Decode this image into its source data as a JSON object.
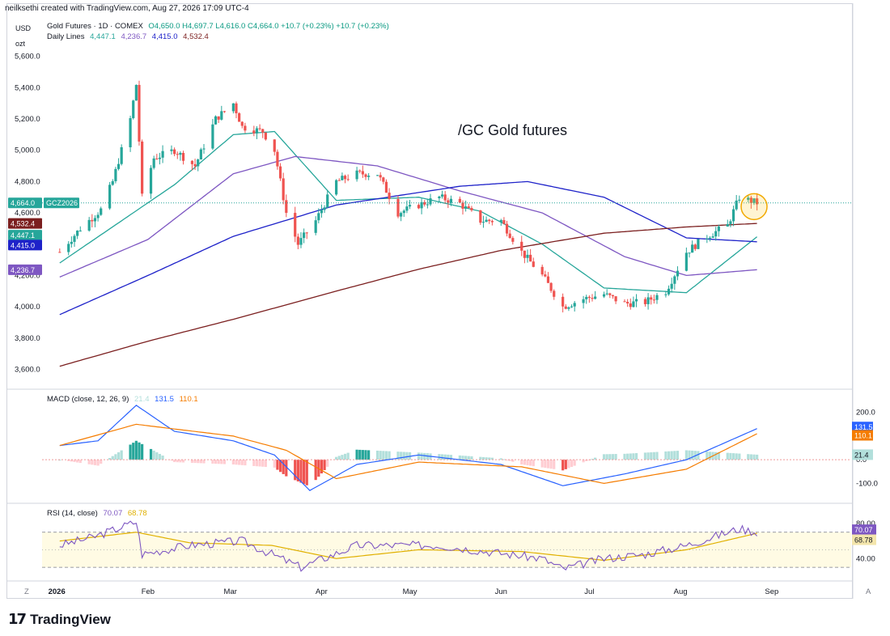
{
  "header": {
    "created": "neilksethi created with TradingView.com, Aug 27, 2026 17:09 UTC-4"
  },
  "units": {
    "currency": "USD",
    "unit": "ozt"
  },
  "legend": {
    "instrument": "Gold Futures · 1D · COMEX",
    "ohlc": "O4,650.0  H4,697.7  L4,616.0  C4,664.0  +10.7 (+0.23%)  +10.7 (+0.23%)",
    "daily_lines_label": "Daily Lines",
    "daily_lines_values": [
      {
        "v": "4,447.1",
        "color": "#26a69a"
      },
      {
        "v": "4,236.7",
        "color": "#7e57c2"
      },
      {
        "v": "4,415.0",
        "color": "#1e22c9"
      },
      {
        "v": "4,532.4",
        "color": "#7b1f1f"
      }
    ],
    "macd_label": "MACD (close, 12, 26, 9)",
    "macd_values": [
      {
        "v": "21.4",
        "color": "#b2dfdb"
      },
      {
        "v": "131.5",
        "color": "#2962ff"
      },
      {
        "v": "110.1",
        "color": "#f57c00"
      }
    ],
    "rsi_label": "RSI (14, close)",
    "rsi_values": [
      {
        "v": "70.07",
        "color": "#7e57c2"
      },
      {
        "v": "68.78",
        "color": "#e0b000"
      }
    ]
  },
  "annotation": "/GC Gold futures",
  "price_badges": [
    {
      "text": "4,664.0",
      "bg": "#26a69a",
      "value": 4664.0
    },
    {
      "text": "GCZ2026",
      "bg": "#26a69a",
      "value": 4664.0
    },
    {
      "text": "4,532.4",
      "bg": "#7b1f1f",
      "value": 4532.4
    },
    {
      "text": "4,447.1",
      "bg": "#26a69a",
      "value": 4447.1
    },
    {
      "text": "4,415.0",
      "bg": "#1e22c9",
      "value": 4415.0
    },
    {
      "text": "4,236.7",
      "bg": "#7e57c2",
      "value": 4236.7
    }
  ],
  "macd_badges": [
    {
      "text": "131.5",
      "bg": "#2962ff",
      "value": 131.5
    },
    {
      "text": "110.1",
      "bg": "#f57c00",
      "value": 110.1
    },
    {
      "text": "21.4",
      "bg": "#b2dfdb",
      "value": 21.4,
      "fg": "#131722"
    }
  ],
  "rsi_badges": [
    {
      "text": "70.07",
      "bg": "#7e57c2",
      "value": 70.07
    },
    {
      "text": "68.78",
      "bg": "#f3e5ab",
      "value": 68.78,
      "fg": "#131722"
    }
  ],
  "footer": {
    "brand": "TradingView",
    "z_label": "Z",
    "a_label": "A"
  },
  "colors": {
    "up": "#26a69a",
    "down": "#ef5350",
    "ma20": "#26a69a",
    "ma50": "#7e57c2",
    "ma100": "#1e22c9",
    "ma200": "#7b1f1f"
  },
  "chart_data": [
    {
      "type": "candlestick",
      "title": "Gold Futures · 1D · COMEX",
      "x_tick_labels": [
        "2026",
        "Feb",
        "Mar",
        "Apr",
        "May",
        "Jun",
        "Jul",
        "Aug",
        "Sep"
      ],
      "y_tick_labels": [
        "3,600.0",
        "3,800.0",
        "4,000.0",
        "4,200.0",
        "4,400.0",
        "4,600.0",
        "4,800.0",
        "5,000.0",
        "5,200.0",
        "5,400.0",
        "5,600.0"
      ],
      "ylim": [
        3530,
        5650
      ],
      "keypoints_close": [
        [
          "2026-01-02",
          4350
        ],
        [
          "2026-01-09",
          4500
        ],
        [
          "2026-01-16",
          4620
        ],
        [
          "2026-01-20",
          4800
        ],
        [
          "2026-01-26",
          5200
        ],
        [
          "2026-01-28",
          5420
        ],
        [
          "2026-01-30",
          4700
        ],
        [
          "2026-02-03",
          4950
        ],
        [
          "2026-02-10",
          5000
        ],
        [
          "2026-02-17",
          4900
        ],
        [
          "2026-02-24",
          5200
        ],
        [
          "2026-03-02",
          5300
        ],
        [
          "2026-03-05",
          5150
        ],
        [
          "2026-03-12",
          5120
        ],
        [
          "2026-03-16",
          5000
        ],
        [
          "2026-03-20",
          4600
        ],
        [
          "2026-03-24",
          4400
        ],
        [
          "2026-03-30",
          4550
        ],
        [
          "2026-04-06",
          4800
        ],
        [
          "2026-04-13",
          4850
        ],
        [
          "2026-04-20",
          4850
        ],
        [
          "2026-04-27",
          4600
        ],
        [
          "2026-05-04",
          4650
        ],
        [
          "2026-05-11",
          4700
        ],
        [
          "2026-05-18",
          4660
        ],
        [
          "2026-05-25",
          4550
        ],
        [
          "2026-06-01",
          4550
        ],
        [
          "2026-06-08",
          4350
        ],
        [
          "2026-06-15",
          4200
        ],
        [
          "2026-06-22",
          4000
        ],
        [
          "2026-06-29",
          4050
        ],
        [
          "2026-07-06",
          4080
        ],
        [
          "2026-07-13",
          4020
        ],
        [
          "2026-07-20",
          4030
        ],
        [
          "2026-07-27",
          4100
        ],
        [
          "2026-08-03",
          4350
        ],
        [
          "2026-08-10",
          4450
        ],
        [
          "2026-08-17",
          4520
        ],
        [
          "2026-08-21",
          4700
        ],
        [
          "2026-08-27",
          4664
        ]
      ],
      "moving_averages": {
        "ma20": [
          [
            "2026-01-02",
            4280
          ],
          [
            "2026-02-10",
            4780
          ],
          [
            "2026-03-02",
            5100
          ],
          [
            "2026-03-16",
            5120
          ],
          [
            "2026-04-06",
            4680
          ],
          [
            "2026-05-04",
            4700
          ],
          [
            "2026-05-25",
            4610
          ],
          [
            "2026-06-15",
            4400
          ],
          [
            "2026-07-06",
            4120
          ],
          [
            "2026-08-03",
            4090
          ],
          [
            "2026-08-27",
            4447.1
          ]
        ],
        "ma50": [
          [
            "2026-01-02",
            4190
          ],
          [
            "2026-02-01",
            4430
          ],
          [
            "2026-03-02",
            4850
          ],
          [
            "2026-03-23",
            4960
          ],
          [
            "2026-04-20",
            4900
          ],
          [
            "2026-05-18",
            4740
          ],
          [
            "2026-06-15",
            4600
          ],
          [
            "2026-07-13",
            4320
          ],
          [
            "2026-08-03",
            4200
          ],
          [
            "2026-08-27",
            4236.7
          ]
        ],
        "ma100": [
          [
            "2026-01-02",
            3950
          ],
          [
            "2026-02-01",
            4200
          ],
          [
            "2026-03-02",
            4450
          ],
          [
            "2026-04-06",
            4650
          ],
          [
            "2026-05-18",
            4770
          ],
          [
            "2026-06-10",
            4800
          ],
          [
            "2026-07-06",
            4700
          ],
          [
            "2026-08-03",
            4440
          ],
          [
            "2026-08-27",
            4415.0
          ]
        ],
        "ma200": [
          [
            "2026-01-02",
            3620
          ],
          [
            "2026-02-01",
            3780
          ],
          [
            "2026-03-02",
            3920
          ],
          [
            "2026-04-06",
            4100
          ],
          [
            "2026-05-04",
            4240
          ],
          [
            "2026-06-01",
            4360
          ],
          [
            "2026-07-06",
            4470
          ],
          [
            "2026-08-03",
            4510
          ],
          [
            "2026-08-27",
            4532.4
          ]
        ]
      }
    },
    {
      "type": "line",
      "title": "MACD (close, 12, 26, 9)",
      "y_tick_labels": [
        "200.0",
        "0.0",
        "-100.0"
      ],
      "ylim": [
        -150,
        240
      ],
      "series": [
        {
          "name": "MACD",
          "values": [
            [
              "2026-01-02",
              60
            ],
            [
              "2026-01-15",
              80
            ],
            [
              "2026-01-28",
              230
            ],
            [
              "2026-02-10",
              120
            ],
            [
              "2026-03-02",
              80
            ],
            [
              "2026-03-16",
              20
            ],
            [
              "2026-03-28",
              -130
            ],
            [
              "2026-04-13",
              -20
            ],
            [
              "2026-05-04",
              20
            ],
            [
              "2026-06-01",
              -20
            ],
            [
              "2026-06-22",
              -110
            ],
            [
              "2026-07-13",
              -60
            ],
            [
              "2026-08-03",
              0
            ],
            [
              "2026-08-27",
              131.5
            ]
          ]
        },
        {
          "name": "Signal",
          "values": [
            [
              "2026-01-02",
              60
            ],
            [
              "2026-01-28",
              150
            ],
            [
              "2026-02-10",
              130
            ],
            [
              "2026-03-02",
              100
            ],
            [
              "2026-03-20",
              40
            ],
            [
              "2026-04-06",
              -80
            ],
            [
              "2026-05-04",
              -10
            ],
            [
              "2026-06-08",
              -30
            ],
            [
              "2026-07-06",
              -100
            ],
            [
              "2026-08-03",
              -40
            ],
            [
              "2026-08-27",
              110.1
            ]
          ]
        },
        {
          "name": "Histogram",
          "values": [
            [
              "2026-01-28",
              80
            ],
            [
              "2026-03-28",
              -100
            ],
            [
              "2026-05-04",
              30
            ],
            [
              "2026-06-22",
              -40
            ],
            [
              "2026-08-27",
              21.4
            ]
          ]
        }
      ]
    },
    {
      "type": "line",
      "title": "RSI (14, close)",
      "y_tick_labels": [
        "80.00",
        "40.00"
      ],
      "ylim": [
        20,
        90
      ],
      "bands": [
        70,
        30
      ],
      "series": [
        {
          "name": "RSI",
          "values": [
            [
              "2026-01-02",
              55
            ],
            [
              "2026-01-14",
              65
            ],
            [
              "2026-01-28",
              82
            ],
            [
              "2026-01-30",
              45
            ],
            [
              "2026-02-15",
              55
            ],
            [
              "2026-03-05",
              60
            ],
            [
              "2026-03-25",
              30
            ],
            [
              "2026-04-13",
              55
            ],
            [
              "2026-05-11",
              55
            ],
            [
              "2026-06-15",
              40
            ],
            [
              "2026-06-22",
              28
            ],
            [
              "2026-07-06",
              40
            ],
            [
              "2026-07-20",
              45
            ],
            [
              "2026-08-03",
              55
            ],
            [
              "2026-08-21",
              74
            ],
            [
              "2026-08-27",
              70.07
            ]
          ]
        },
        {
          "name": "RSI MA",
          "values": [
            [
              "2026-01-02",
              60
            ],
            [
              "2026-01-28",
              70
            ],
            [
              "2026-02-15",
              58
            ],
            [
              "2026-03-15",
              55
            ],
            [
              "2026-04-06",
              40
            ],
            [
              "2026-05-04",
              50
            ],
            [
              "2026-06-08",
              48
            ],
            [
              "2026-07-06",
              38
            ],
            [
              "2026-08-03",
              50
            ],
            [
              "2026-08-27",
              68.78
            ]
          ]
        }
      ]
    }
  ]
}
